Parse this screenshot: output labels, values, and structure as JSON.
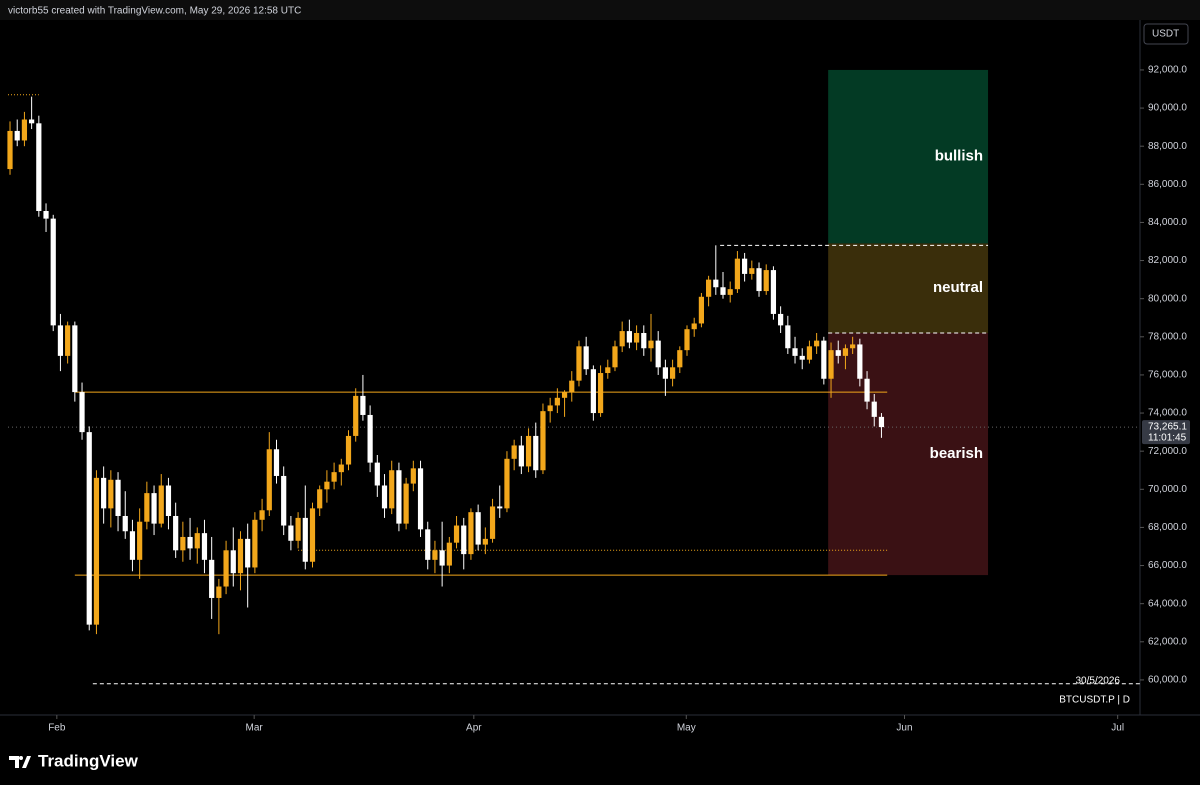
{
  "header": {
    "attribution": "victorb55 created with TradingView.com, May 29, 2026 12:58 UTC"
  },
  "chart_data": {
    "type": "candlestick",
    "currency": "USDT",
    "symbol": "BTCUSDT.P | D",
    "date_marker": "30/5/2026",
    "countdown": "11:01:45",
    "colors": {
      "up": "#f2a71b",
      "down": "#ffffff"
    },
    "last_price": {
      "value": 73265.1,
      "label": "73,265.1"
    },
    "open": [
      86800,
      88800,
      88300,
      89400,
      89200,
      84600,
      84200,
      78600,
      77000,
      78600,
      75100,
      73000,
      62900,
      70600,
      69000,
      70500,
      68600,
      67800,
      66300,
      68300,
      69800,
      68200,
      70200,
      68600,
      66800,
      67500,
      66900,
      67700,
      66300,
      64300,
      64900,
      66800,
      65600,
      67400,
      65900,
      68400,
      68900,
      72100,
      70700,
      68100,
      67300,
      68500,
      66200,
      69000,
      70000,
      70400,
      70900,
      71300,
      72800,
      74900,
      73900,
      71400,
      70200,
      69000,
      71000,
      68200,
      70300,
      71100,
      67900,
      66300,
      66800,
      66000,
      67200,
      68100,
      66600,
      68800,
      67100,
      67400,
      69100,
      69000,
      71600,
      72300,
      71200,
      72800,
      71000,
      74100,
      74400,
      74800,
      75100,
      75700,
      77500,
      76300,
      74000,
      76100,
      76400,
      77500,
      78300,
      77700,
      78200,
      77400,
      77800,
      76400,
      75800,
      76400,
      77300,
      78400,
      78700,
      80100,
      81000,
      80600,
      80200,
      80500,
      82100,
      81300,
      81600,
      80400,
      81500,
      79200,
      78600,
      77400,
      77000,
      76800,
      77500,
      77800,
      75800,
      77300,
      77000,
      77400,
      77600,
      75800,
      74600,
      73800
    ],
    "high": [
      89300,
      89400,
      89800,
      90600,
      89600,
      85000,
      84400,
      79200,
      78800,
      78800,
      75600,
      73300,
      71000,
      71200,
      71000,
      70900,
      69900,
      68400,
      69000,
      70400,
      70200,
      70800,
      70600,
      69300,
      68300,
      68500,
      68000,
      68400,
      67500,
      65300,
      67300,
      68000,
      67800,
      68200,
      68800,
      69500,
      73000,
      72600,
      71200,
      68600,
      68800,
      70200,
      69300,
      70200,
      71000,
      71400,
      71600,
      73100,
      75300,
      76000,
      74400,
      71800,
      70800,
      71500,
      71400,
      70600,
      71500,
      71500,
      68300,
      67300,
      68300,
      67500,
      68600,
      68500,
      69000,
      69200,
      68000,
      69500,
      70200,
      72000,
      72600,
      72800,
      73200,
      73500,
      74500,
      74800,
      75300,
      75200,
      76200,
      77800,
      78000,
      76500,
      76500,
      76800,
      77800,
      78800,
      78900,
      78600,
      78600,
      79200,
      78300,
      76800,
      76800,
      77500,
      78600,
      79000,
      80300,
      81200,
      82800,
      81400,
      80900,
      82500,
      82400,
      82000,
      81900,
      81800,
      81700,
      79600,
      79100,
      78000,
      77400,
      77800,
      78200,
      78000,
      77700,
      77800,
      77600,
      78000,
      77900,
      76200,
      75000,
      74000
    ],
    "low": [
      86500,
      88000,
      88000,
      88900,
      84300,
      83500,
      78300,
      76200,
      76600,
      74600,
      72600,
      62600,
      62400,
      68200,
      68000,
      67800,
      67400,
      65700,
      65300,
      67900,
      67600,
      68000,
      67900,
      66400,
      66200,
      66300,
      66100,
      65600,
      63200,
      62400,
      64500,
      64900,
      64700,
      63800,
      65600,
      67800,
      68600,
      70300,
      67600,
      66800,
      66900,
      65800,
      65900,
      68600,
      69300,
      70000,
      70200,
      71000,
      72500,
      73600,
      70900,
      69600,
      68500,
      68700,
      67800,
      67900,
      69900,
      67500,
      65800,
      65600,
      64900,
      65600,
      66900,
      65800,
      66300,
      66800,
      66600,
      67200,
      68500,
      68800,
      71000,
      70800,
      70900,
      70600,
      70800,
      73500,
      74000,
      73800,
      74600,
      75400,
      76000,
      73600,
      73800,
      75800,
      76200,
      77200,
      77400,
      77300,
      77000,
      76700,
      76000,
      74900,
      75400,
      76100,
      77000,
      78000,
      78500,
      79600,
      80200,
      80000,
      79800,
      80300,
      80900,
      81000,
      80100,
      80200,
      78900,
      78200,
      77100,
      76600,
      76300,
      76600,
      77100,
      75500,
      74800,
      76600,
      76300,
      77100,
      75400,
      74200,
      73300,
      72700
    ],
    "close": [
      88800,
      88300,
      89400,
      89200,
      84600,
      84200,
      78600,
      77000,
      78600,
      75100,
      73000,
      62900,
      70600,
      69000,
      70500,
      68600,
      67800,
      66300,
      68300,
      69800,
      68200,
      70200,
      68600,
      66800,
      67500,
      66900,
      67700,
      66300,
      64300,
      64900,
      66800,
      65600,
      67400,
      65900,
      68400,
      68900,
      72100,
      70700,
      68100,
      67300,
      68500,
      66200,
      69000,
      70000,
      70400,
      70900,
      71300,
      72800,
      74900,
      73900,
      71400,
      70200,
      69000,
      71000,
      68200,
      70300,
      71100,
      67900,
      66300,
      66800,
      66000,
      67200,
      68100,
      66600,
      68800,
      67100,
      67400,
      69100,
      69000,
      71600,
      72300,
      71200,
      72800,
      71000,
      74100,
      74400,
      74800,
      75100,
      75700,
      77500,
      76300,
      74000,
      76100,
      76400,
      77500,
      78300,
      77700,
      78200,
      77400,
      77800,
      76400,
      75800,
      76400,
      77300,
      78400,
      78700,
      80100,
      81000,
      80600,
      80200,
      80500,
      82100,
      81300,
      81600,
      80400,
      81500,
      79200,
      78600,
      77400,
      77000,
      76800,
      77500,
      77800,
      75800,
      77300,
      77000,
      77400,
      77600,
      75800,
      74600,
      73800,
      73265.1
    ],
    "xlim": [
      -0.28,
      156.9
    ],
    "xticks": [
      {
        "value": 6.5,
        "label": "Feb"
      },
      {
        "value": 33.9,
        "label": "Mar"
      },
      {
        "value": 64.4,
        "label": "Apr"
      },
      {
        "value": 93.9,
        "label": "May"
      },
      {
        "value": 124.2,
        "label": "Jun"
      },
      {
        "value": 153.8,
        "label": "Jul"
      }
    ],
    "ylim": [
      58160,
      94620
    ],
    "yticks": [
      {
        "value": 60000,
        "label": "60,000.0"
      },
      {
        "value": 62000,
        "label": "62,000.0"
      },
      {
        "value": 64000,
        "label": "64,000.0"
      },
      {
        "value": 66000,
        "label": "66,000.0"
      },
      {
        "value": 68000,
        "label": "68,000.0"
      },
      {
        "value": 70000,
        "label": "70,000.0"
      },
      {
        "value": 72000,
        "label": "72,000.0"
      },
      {
        "value": 74000,
        "label": "74,000.0"
      },
      {
        "value": 76000,
        "label": "76,000.0"
      },
      {
        "value": 78000,
        "label": "78,000.0"
      },
      {
        "value": 80000,
        "label": "80,000.0"
      },
      {
        "value": 82000,
        "label": "82,000.0"
      },
      {
        "value": 84000,
        "label": "84,000.0"
      },
      {
        "value": 86000,
        "label": "86,000.0"
      },
      {
        "value": 88000,
        "label": "88,000.0"
      },
      {
        "value": 90000,
        "label": "90,000.0"
      },
      {
        "value": 92000,
        "label": "92,000.0"
      }
    ],
    "zones": [
      {
        "label": "bullish",
        "from": 82900,
        "to": 92000,
        "x": [
          113.6,
          135.8
        ],
        "color": "#033a24"
      },
      {
        "label": "neutral",
        "from": 78200,
        "to": 82900,
        "x": [
          113.6,
          135.8
        ],
        "color": "#3a2e0b"
      },
      {
        "label": "bearish",
        "from": 65500,
        "to": 78200,
        "x": [
          113.6,
          135.8
        ],
        "color": "#3a1114"
      }
    ],
    "levels": [
      {
        "value": 75100,
        "x": [
          9,
          121.8
        ],
        "style": "solid",
        "color": "#f2a71b"
      },
      {
        "value": 65500,
        "x": [
          9,
          121.8
        ],
        "style": "solid",
        "color": "#f2a71b"
      },
      {
        "value": 66800,
        "x": [
          40,
          121.8
        ],
        "style": "dotted",
        "color": "#f2a71b"
      },
      {
        "value": 82800,
        "x": [
          98.6,
          135.8
        ],
        "style": "dashed",
        "color": "#ffffff"
      },
      {
        "value": 78200,
        "x": [
          113.6,
          135.8
        ],
        "style": "dashed",
        "color": "#ffffff"
      },
      {
        "value": 59800,
        "x": [
          11.5,
          156.9
        ],
        "style": "dashed",
        "color": "#ffffff"
      },
      {
        "value": 90700,
        "x": [
          -0.28,
          4
        ],
        "style": "dotted",
        "color": "#f2a71b"
      }
    ]
  },
  "footer": {
    "brand": "TradingView"
  }
}
